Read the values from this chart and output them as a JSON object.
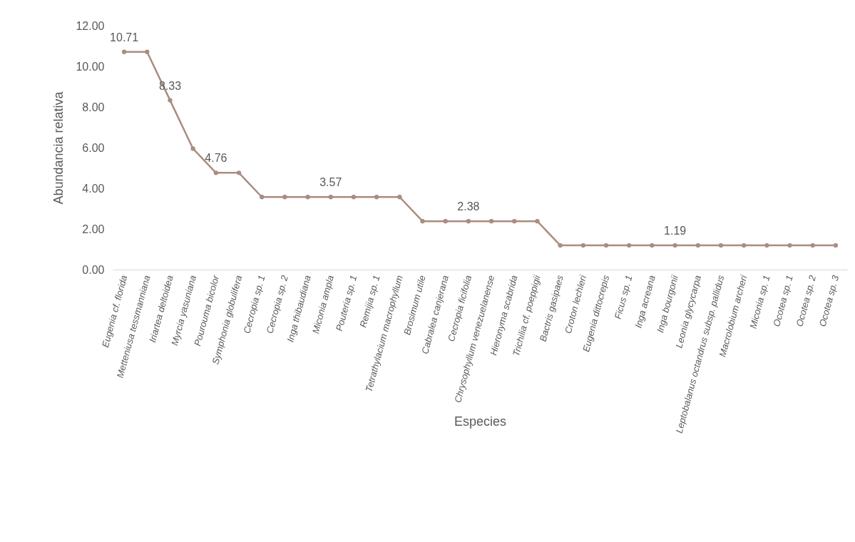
{
  "chart_data": {
    "type": "line",
    "xlabel": "Especies",
    "ylabel": "Abundancia relativa",
    "categories": [
      "Eugenia cf. florida",
      "Metteniusa tessmanniana",
      "Iriartea deltoidea",
      "Myrcia yasuniana",
      "Pourouma bicolor",
      "Symphonia globulifera",
      "Cecropia sp. 1",
      "Cecropia sp. 2",
      "Inga thibaudiana",
      "Miconia ampla",
      "Pouteria sp. 1",
      "Remijia sp. 1",
      "Tetrathylacium macrophyllum",
      "Brosimum utile",
      "Cabralea canjerana",
      "Cecropia ficifolia",
      "Chrysophyllum venezuelanense",
      "Hieronyma scabrida",
      "Trichilia cf. poeppigii",
      "Bactris gasipaes",
      "Croton lechleri",
      "Eugenia dittocrepis",
      "Ficus sp. 1",
      "Inga acreana",
      "Inga bourgonii",
      "Leonia glycycarpa",
      "Leptobalanus octandrus subsp. pallidus",
      "Macrolobium archeri",
      "Miconia sp. 1",
      "Ocotea sp. 1",
      "Ocotea sp. 2",
      "Ocotea sp. 3"
    ],
    "series": [
      {
        "color": "#ab8c80",
        "values": [
          10.71,
          10.71,
          8.33,
          5.95,
          4.76,
          4.76,
          3.57,
          3.57,
          3.57,
          3.57,
          3.57,
          3.57,
          3.57,
          2.38,
          2.38,
          2.38,
          2.38,
          2.38,
          2.38,
          1.19,
          1.19,
          1.19,
          1.19,
          1.19,
          1.19,
          1.19,
          1.19,
          1.19,
          1.19,
          1.19,
          1.19,
          1.19
        ],
        "value_labels": [
          "10.71",
          null,
          "8.33",
          null,
          "4.76",
          null,
          null,
          null,
          null,
          "3.57",
          null,
          null,
          null,
          null,
          null,
          "2.38",
          null,
          null,
          null,
          null,
          null,
          null,
          null,
          null,
          "1.19",
          null,
          null,
          null,
          null,
          null,
          null,
          null
        ]
      }
    ],
    "ylim": [
      0,
      12
    ],
    "yticks": [
      {
        "value": 0,
        "label": "0.00"
      },
      {
        "value": 2,
        "label": "2.00"
      },
      {
        "value": 4,
        "label": "4.00"
      },
      {
        "value": 6,
        "label": "6.00"
      },
      {
        "value": 8,
        "label": "8.00"
      },
      {
        "value": 10,
        "label": "10.00"
      },
      {
        "value": 12,
        "label": "12.00"
      }
    ],
    "marker": "circle",
    "grid": false,
    "line_style": "solid"
  }
}
